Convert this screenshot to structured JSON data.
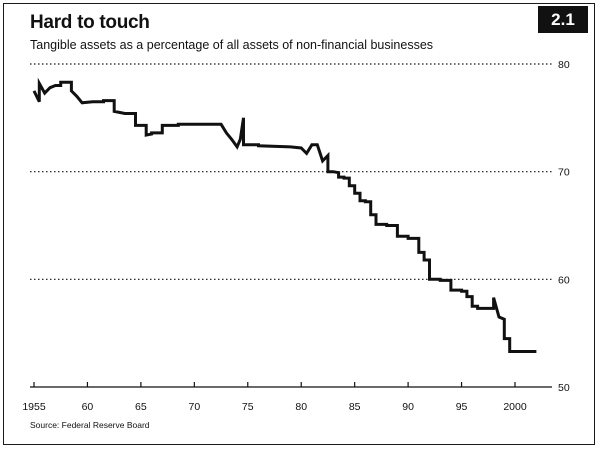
{
  "badge": "2.1",
  "source": "Source: Federal Reserve Board",
  "chart_data": {
    "type": "line",
    "title": "Hard to touch",
    "subtitle": "Tangible assets as a percentage of all assets of non-financial businesses",
    "xlabel": "",
    "ylabel": "",
    "xlim": [
      1955,
      2002
    ],
    "ylim": [
      50,
      80
    ],
    "x_ticks": [
      1955,
      1960,
      1965,
      1970,
      1975,
      1980,
      1985,
      1990,
      1995,
      2000
    ],
    "x_tick_labels": [
      "1955",
      "60",
      "65",
      "70",
      "75",
      "80",
      "85",
      "90",
      "95",
      "2000"
    ],
    "y_ticks": [
      50,
      60,
      70,
      80
    ],
    "y_tick_labels": [
      "50",
      "60",
      "70",
      "80"
    ],
    "grid": "horizontal dotted",
    "line_color": "#111111",
    "series": [
      {
        "x": [
          1955.0,
          1955.5,
          1955.5,
          1956.0,
          1956.5,
          1957.0,
          1957.5,
          1957.5,
          1958.5,
          1958.5,
          1959.0,
          1959.5,
          1959.5,
          1960.5,
          1960.5,
          1961.5,
          1961.5,
          1962.5,
          1962.5,
          1963.5,
          1963.5,
          1964.5,
          1964.5,
          1965.0,
          1965.0,
          1965.5,
          1965.5,
          1966.0,
          1966.0,
          1967.0,
          1967.0,
          1968.5,
          1968.5,
          1970.0,
          1970.0,
          1972.5,
          1972.5,
          1973.0,
          1973.5,
          1974.0,
          1974.3,
          1974.6,
          1974.6,
          1976.0,
          1976.0,
          1979.0,
          1979.0,
          1980.0,
          1980.0,
          1980.5,
          1981.0,
          1981.5,
          1982.0,
          1982.5,
          1982.5,
          1983.0,
          1983.0,
          1983.5,
          1983.5,
          1984.0,
          1984.0,
          1984.5,
          1984.5,
          1985.0,
          1985.0,
          1985.5,
          1985.5,
          1986.0,
          1986.0,
          1986.5,
          1986.5,
          1987.0,
          1987.0,
          1988.0,
          1988.0,
          1989.0,
          1989.0,
          1990.0,
          1990.0,
          1991.0,
          1991.0,
          1991.5,
          1991.5,
          1992.0,
          1992.0,
          1993.0,
          1993.0,
          1994.0,
          1994.0,
          1995.0,
          1995.0,
          1995.5,
          1995.5,
          1996.0,
          1996.0,
          1996.5,
          1996.5,
          1997.5,
          1997.5,
          1998.0,
          1998.0,
          1998.5,
          1998.5,
          1999.0,
          1999.0,
          1999.5,
          1999.5,
          2001.0,
          2001.0,
          2002.0
        ],
        "values": [
          77.5,
          76.5,
          78.2,
          77.3,
          77.8,
          78.0,
          78.0,
          78.3,
          78.3,
          77.5,
          77.0,
          76.4,
          76.4,
          76.5,
          76.5,
          76.5,
          76.6,
          76.6,
          75.6,
          75.4,
          75.4,
          75.4,
          74.3,
          74.3,
          74.3,
          74.3,
          73.4,
          73.5,
          73.6,
          73.6,
          74.3,
          74.3,
          74.4,
          74.4,
          74.4,
          74.4,
          74.4,
          73.6,
          73.0,
          72.3,
          73.0,
          75.0,
          72.5,
          72.5,
          72.4,
          72.3,
          72.3,
          72.2,
          72.2,
          71.7,
          72.5,
          72.5,
          71.0,
          71.5,
          70.0,
          70.0,
          70.0,
          69.9,
          69.5,
          69.5,
          69.4,
          69.4,
          68.7,
          68.7,
          68.0,
          68.0,
          67.3,
          67.3,
          67.2,
          67.2,
          66.0,
          66.0,
          65.1,
          65.1,
          65.0,
          65.0,
          64.0,
          64.0,
          63.8,
          63.8,
          62.5,
          62.5,
          61.8,
          61.8,
          60.0,
          60.0,
          59.9,
          59.9,
          59.0,
          59.0,
          58.9,
          58.9,
          58.4,
          58.4,
          57.5,
          57.5,
          57.3,
          57.3,
          57.3,
          57.3,
          58.3,
          56.5,
          56.5,
          56.3,
          54.5,
          54.5,
          53.3,
          53.3,
          53.3,
          53.3
        ]
      }
    ]
  }
}
